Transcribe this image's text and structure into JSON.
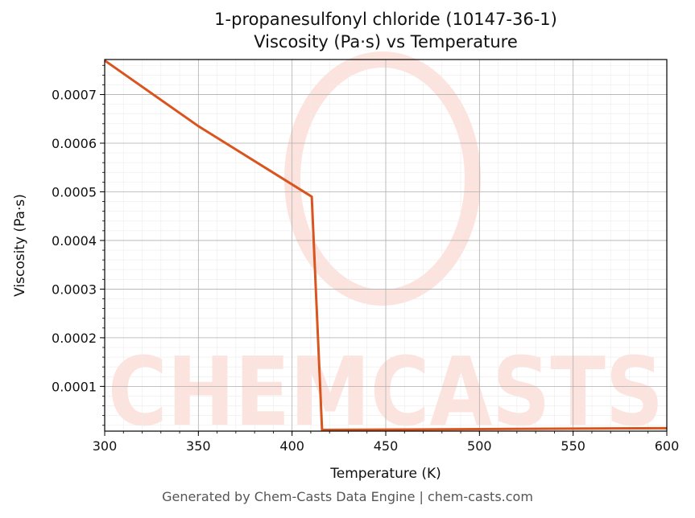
{
  "chart_data": {
    "type": "line",
    "title": "1-propanesulfonyl chloride (10147-36-1)",
    "subtitle": "Viscosity (Pa·s) vs Temperature",
    "xlabel": "Temperature (K)",
    "ylabel": "Viscosity (Pa·s)",
    "xlim": [
      300,
      600
    ],
    "ylim": [
      8e-06,
      0.000772
    ],
    "x_ticks": [
      300,
      350,
      400,
      450,
      500,
      550,
      600
    ],
    "x_tick_labels": [
      "300",
      "350",
      "400",
      "450",
      "500",
      "550",
      "600"
    ],
    "y_ticks": [
      0.0001,
      0.0002,
      0.0003,
      0.0004,
      0.0005,
      0.0006,
      0.0007
    ],
    "y_tick_labels": [
      "0.0001",
      "0.0002",
      "0.0003",
      "0.0004",
      "0.0005",
      "0.0006",
      "0.0007"
    ],
    "grid": true,
    "series": [
      {
        "color": "#d9541e",
        "x": [
          300,
          350,
          410.5,
          416,
          450,
          500,
          550,
          600
        ],
        "y": [
          0.00077,
          0.000635,
          0.00049,
          1.05e-05,
          1.12e-05,
          1.22e-05,
          1.32e-05,
          1.4e-05
        ]
      }
    ],
    "watermark": "CHEMCASTS"
  },
  "footer": "Generated by Chem-Casts Data Engine | chem-casts.com"
}
